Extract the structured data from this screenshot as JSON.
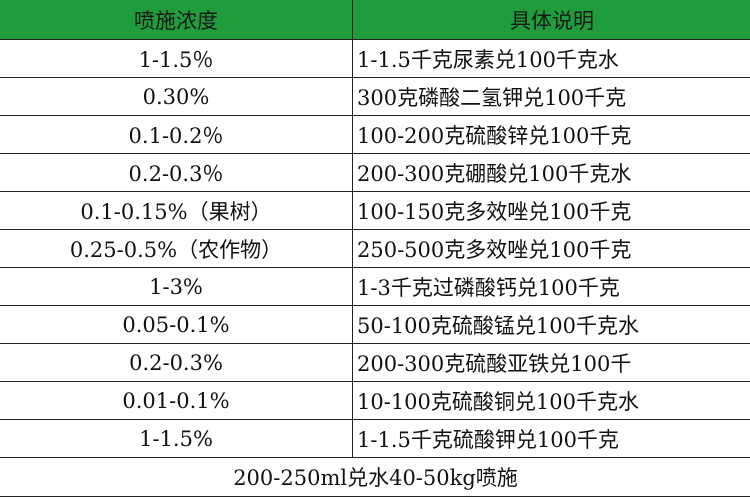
{
  "table": {
    "header": [
      "喷施浓度",
      "具体说明"
    ],
    "rows": [
      [
        "1-1.5％",
        "1-1.5千克尿素兑100千克水"
      ],
      [
        "0.30%",
        "300克磷酸二氢钾兑100千克"
      ],
      [
        "0.1-0.2％",
        "100-200克硫酸锌兑100千克"
      ],
      [
        "0.2-0.3％",
        "200-300克硼酸兑100千克水"
      ],
      [
        "0.1-0.15%（果树）",
        "100-150克多效唑兑100千克"
      ],
      [
        "0.25-0.5%（农作物）",
        "250-500克多效唑兑100千克"
      ],
      [
        "1-3%",
        "1-3千克过磷酸钙兑100千克"
      ],
      [
        "0.05-0.1%",
        "50-100克硫酸锰兑100千克水"
      ],
      [
        "0.2-0.3%",
        "200-300克硫酸亚铁兑100千"
      ],
      [
        "0.01-0.1%",
        "10-100克硫酸铜兑100千克水"
      ],
      [
        "1-1.5%",
        "1-1.5千克硫酸钾兑100千克"
      ]
    ],
    "footer": "200-250ml兑水40-50kg喷施"
  }
}
